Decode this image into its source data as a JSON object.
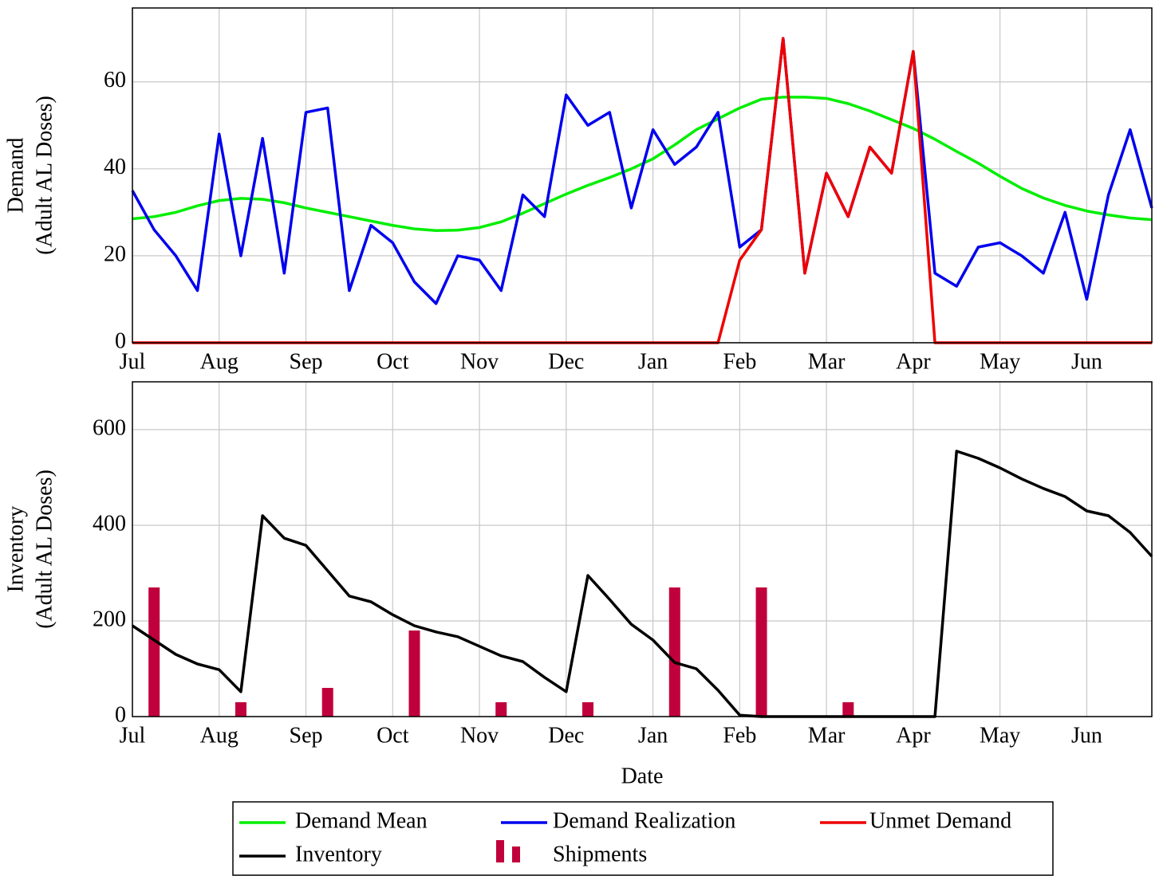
{
  "chart_data": [
    {
      "type": "line",
      "ylabel": [
        "Demand",
        "(Adult AL Doses)"
      ],
      "x": [
        0,
        0.25,
        0.5,
        0.75,
        1,
        1.25,
        1.5,
        1.75,
        2,
        2.25,
        2.5,
        2.75,
        3,
        3.25,
        3.5,
        3.75,
        4,
        4.25,
        4.5,
        4.75,
        5,
        5.25,
        5.5,
        5.75,
        6,
        6.25,
        6.5,
        6.75,
        7,
        7.25,
        7.5,
        7.75,
        8,
        8.25,
        8.5,
        8.75,
        9,
        9.25,
        9.5,
        9.75,
        10,
        10.25,
        10.5,
        10.75,
        11,
        11.25,
        11.5,
        11.75
      ],
      "xlim": [
        0,
        11.75
      ],
      "xticks": [
        {
          "value": 0,
          "label": "Jul"
        },
        {
          "value": 1,
          "label": "Aug"
        },
        {
          "value": 2,
          "label": "Sep"
        },
        {
          "value": 3,
          "label": "Oct"
        },
        {
          "value": 4,
          "label": "Nov"
        },
        {
          "value": 5,
          "label": "Dec"
        },
        {
          "value": 6,
          "label": "Jan"
        },
        {
          "value": 7,
          "label": "Feb"
        },
        {
          "value": 8,
          "label": "Mar"
        },
        {
          "value": 9,
          "label": "Apr"
        },
        {
          "value": 10,
          "label": "May"
        },
        {
          "value": 11,
          "label": "Jun"
        }
      ],
      "ylim": [
        0,
        77
      ],
      "yticks": [
        0,
        20,
        40,
        60
      ],
      "grid": true,
      "series": [
        {
          "name": "Demand Mean",
          "color": "#00ee00",
          "values": [
            28.5,
            29,
            30,
            31.5,
            32.7,
            33.2,
            33,
            32.2,
            31,
            30,
            29,
            28,
            27,
            26.2,
            25.8,
            25.9,
            26.5,
            27.8,
            29.8,
            32,
            34.2,
            36.2,
            38,
            40,
            42.3,
            45.5,
            49,
            51.5,
            54,
            56,
            56.5,
            56.5,
            56.2,
            55,
            53.3,
            51.3,
            49.3,
            46.8,
            44,
            41.3,
            38.3,
            35.5,
            33.3,
            31.6,
            30.3,
            29.4,
            28.7,
            28.3
          ]
        },
        {
          "name": "Demand Realization",
          "color": "#0000ee",
          "values": [
            35,
            26,
            20,
            12,
            48,
            20,
            47,
            16,
            53,
            54,
            12,
            27,
            23,
            14,
            9,
            20,
            19,
            12,
            34,
            29,
            57,
            50,
            53,
            31,
            49,
            41,
            45,
            53,
            22,
            26,
            70,
            16,
            39,
            29,
            45,
            39,
            67,
            16,
            13,
            22,
            23,
            20,
            16,
            30,
            10,
            34,
            49,
            31
          ]
        },
        {
          "name": "Unmet Demand",
          "color": "#ee0000",
          "values": [
            0,
            0,
            0,
            0,
            0,
            0,
            0,
            0,
            0,
            0,
            0,
            0,
            0,
            0,
            0,
            0,
            0,
            0,
            0,
            0,
            0,
            0,
            0,
            0,
            0,
            0,
            0,
            0,
            19,
            26,
            70,
            16,
            39,
            29,
            45,
            39,
            67,
            0,
            0,
            0,
            0,
            0,
            0,
            0,
            0,
            0,
            0,
            0
          ]
        }
      ]
    },
    {
      "type": "line",
      "ylabel": [
        "Inventory",
        "(Adult AL Doses)"
      ],
      "xlabel": "Date",
      "x": [
        0,
        0.25,
        0.5,
        0.75,
        1,
        1.25,
        1.5,
        1.75,
        2,
        2.25,
        2.5,
        2.75,
        3,
        3.25,
        3.5,
        3.75,
        4,
        4.25,
        4.5,
        4.75,
        5,
        5.25,
        5.5,
        5.75,
        6,
        6.25,
        6.5,
        6.75,
        7,
        7.25,
        7.5,
        7.75,
        8,
        8.25,
        8.5,
        8.75,
        9,
        9.25,
        9.5,
        9.75,
        10,
        10.25,
        10.5,
        10.75,
        11,
        11.25,
        11.5,
        11.75
      ],
      "xlim": [
        0,
        11.75
      ],
      "xticks": [
        {
          "value": 0,
          "label": "Jul"
        },
        {
          "value": 1,
          "label": "Aug"
        },
        {
          "value": 2,
          "label": "Sep"
        },
        {
          "value": 3,
          "label": "Oct"
        },
        {
          "value": 4,
          "label": "Nov"
        },
        {
          "value": 5,
          "label": "Dec"
        },
        {
          "value": 6,
          "label": "Jan"
        },
        {
          "value": 7,
          "label": "Feb"
        },
        {
          "value": 8,
          "label": "Mar"
        },
        {
          "value": 9,
          "label": "Apr"
        },
        {
          "value": 10,
          "label": "May"
        },
        {
          "value": 11,
          "label": "Jun"
        }
      ],
      "ylim": [
        0,
        700
      ],
      "yticks": [
        0,
        200,
        400,
        600
      ],
      "grid": true,
      "series": [
        {
          "name": "Inventory",
          "color": "#000000",
          "values": [
            190,
            160,
            130,
            110,
            98,
            52,
            420,
            373,
            358,
            305,
            252,
            240,
            213,
            190,
            177,
            167,
            147,
            127,
            115,
            82,
            52,
            295,
            245,
            193,
            160,
            113,
            100,
            55,
            3,
            0,
            0,
            0,
            0,
            0,
            0,
            0,
            0,
            0,
            555,
            540,
            520,
            497,
            477,
            460,
            430,
            420,
            385,
            335
          ]
        },
        {
          "name": "Shipments",
          "color": "#c0003c",
          "type": "bar",
          "x": [
            0.25,
            1.25,
            2.25,
            3.25,
            4.25,
            5.25,
            6.25,
            7.25,
            8.25
          ],
          "values": [
            270,
            30,
            60,
            180,
            30,
            30,
            270,
            270,
            30
          ]
        }
      ]
    }
  ]
}
